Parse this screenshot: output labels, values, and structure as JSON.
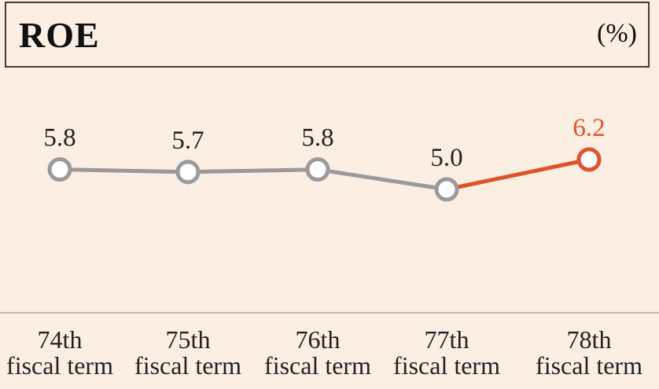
{
  "chart_data": {
    "type": "line",
    "title": "ROE",
    "unit": "(%)",
    "categories": [
      {
        "line1": "74th",
        "line2": "fiscal term"
      },
      {
        "line1": "75th",
        "line2": "fiscal term"
      },
      {
        "line1": "76th",
        "line2": "fiscal term"
      },
      {
        "line1": "77th",
        "line2": "fiscal term"
      },
      {
        "line1": "78th",
        "line2": "fiscal term"
      }
    ],
    "values": [
      5.8,
      5.7,
      5.8,
      5.0,
      6.2
    ],
    "value_labels": [
      "5.8",
      "5.7",
      "5.8",
      "5.0",
      "6.2"
    ],
    "highlight_index": 4,
    "colors": {
      "series": "#9a9a9a",
      "highlight": "#e0522a",
      "label": "#222222"
    }
  }
}
